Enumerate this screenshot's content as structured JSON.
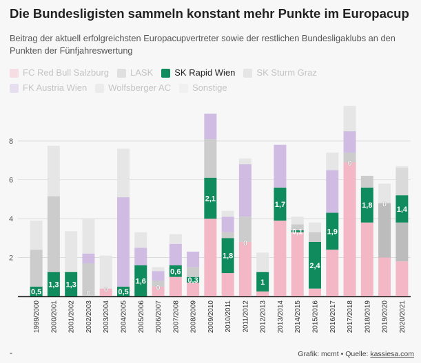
{
  "header": {
    "title": "Die Bundesligisten sammeln konstant mehr Punkte im Europacup",
    "subtitle": "Beitrag der aktuell erfolgreichsten Europacupvertreter sowie der restlichen Bundesligaklubs an den Punkten der Fünfjahreswertung"
  },
  "footer": {
    "dot": "-",
    "credit_prefix": "Grafik: mcmt • Quelle: ",
    "credit_link": "kassiesa.com"
  },
  "colors": {
    "salzburg": "#f2b3c3",
    "lask": "#b8b8b8",
    "rapid": "#0f8b5d",
    "sturm": "#c9c9c9",
    "austria": "#cdb8e2",
    "wolfsberger": "#d8d8d8",
    "sonstige": "#e5e5e5"
  },
  "chart_data": {
    "type": "bar",
    "stacked": true,
    "title": "Die Bundesligisten sammeln konstant mehr Punkte im Europacup",
    "ylim": [
      0,
      10
    ],
    "yticks": [
      2,
      4,
      6,
      8
    ],
    "grid": true,
    "legend_position": "top-left",
    "highlighted_series": "SK Rapid Wien",
    "categories": [
      "1999/2000",
      "2000/2001",
      "2001/2002",
      "2002/2003",
      "2003/2004",
      "2004/2005",
      "2005/2006",
      "2006/2007",
      "2007/2008",
      "2008/2009",
      "2009/2010",
      "2010/2011",
      "2011/2012",
      "2012/2013",
      "2013/2014",
      "2014/2015",
      "2015/2016",
      "2016/2017",
      "2017/2018",
      "2018/2019",
      "2019/2020",
      "2020/2021"
    ],
    "rapid_labels": [
      "0,5",
      "1,3",
      "1,3",
      "0",
      "0",
      "0,5",
      "1,6",
      "0",
      "0,6",
      "0,3",
      "2,1",
      "1,8",
      "0",
      "1",
      "1,7",
      "0,1",
      "2,4",
      "1,9",
      "0",
      "1,8",
      "0",
      "1,4"
    ],
    "series": [
      {
        "name": "FC Red Bull Salzburg",
        "key": "salzburg",
        "values": [
          0,
          0,
          0,
          0,
          0.4,
          0,
          0,
          0.5,
          1.0,
          0.7,
          4.0,
          1.2,
          2.8,
          0.25,
          3.9,
          3.3,
          0.4,
          2.4,
          6.9,
          3.8,
          2.0,
          1.8
        ]
      },
      {
        "name": "LASK",
        "key": "lask",
        "values": [
          0,
          0,
          0,
          0,
          0,
          0,
          0,
          0,
          0,
          0,
          0,
          0,
          0,
          0,
          0,
          0,
          0,
          0,
          0,
          0,
          2.8,
          2.0
        ]
      },
      {
        "name": "SK Rapid Wien",
        "key": "rapid",
        "values": [
          0.5,
          1.25,
          1.25,
          0,
          0,
          0.5,
          1.6,
          0,
          0.6,
          0.3,
          2.1,
          1.8,
          0,
          1.0,
          1.7,
          0.1,
          2.4,
          1.9,
          0,
          1.8,
          0,
          1.4
        ]
      },
      {
        "name": "SK Sturm Graz",
        "key": "sturm",
        "values": [
          1.9,
          3.9,
          0,
          1.7,
          0,
          0,
          0,
          0.3,
          0,
          0.5,
          2.0,
          0.3,
          1.3,
          0,
          0,
          0.3,
          0.5,
          0,
          0.5,
          0.6,
          0,
          0
        ]
      },
      {
        "name": "FK Austria Wien",
        "key": "austria",
        "values": [
          0,
          0,
          0,
          0.5,
          0,
          4.6,
          0.9,
          0.5,
          1.1,
          0.8,
          1.3,
          0.8,
          2.7,
          0,
          2.2,
          0,
          0,
          2.2,
          1.1,
          0,
          0,
          0
        ]
      },
      {
        "name": "Wolfsberger AC",
        "key": "wolfsberger",
        "values": [
          0,
          0,
          0,
          0,
          0,
          0,
          0,
          0,
          0,
          0,
          0,
          0,
          0,
          0,
          0,
          0,
          0,
          0,
          0,
          0,
          0,
          1.4
        ]
      },
      {
        "name": "Sonstige",
        "key": "sonstige",
        "values": [
          1.5,
          2.6,
          2.1,
          1.8,
          1.7,
          2.5,
          0.8,
          0.2,
          0.5,
          0,
          0,
          0.3,
          0.3,
          1.0,
          0,
          0.4,
          0.5,
          0.9,
          1.3,
          0,
          1.0,
          0.1
        ]
      }
    ]
  }
}
